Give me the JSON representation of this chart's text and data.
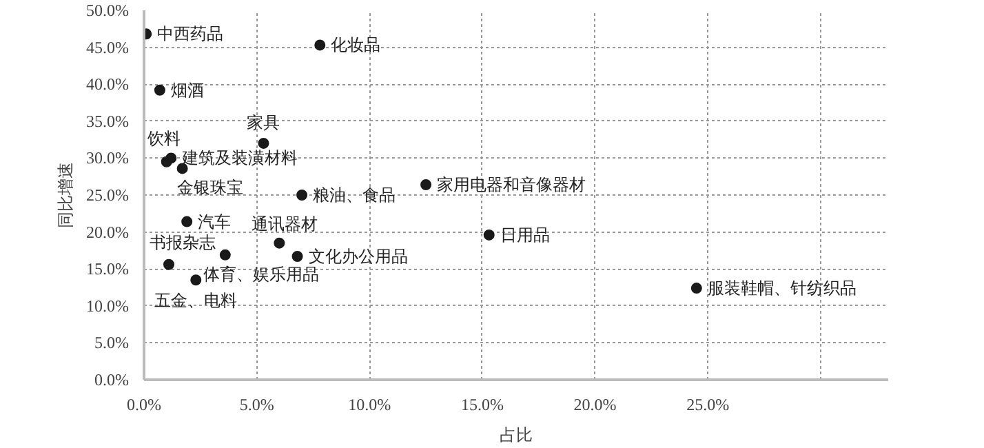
{
  "chart_data": {
    "type": "scatter",
    "xlabel": "占比",
    "ylabel": "同比增速",
    "x": [
      0.1,
      7.8,
      0.7,
      5.3,
      1.0,
      1.2,
      1.7,
      7.0,
      12.5,
      1.9,
      6.0,
      6.8,
      1.1,
      3.6,
      2.3,
      15.3,
      24.5
    ],
    "series": [
      {
        "color": "#1a1a1a",
        "values": [
          46.8,
          45.3,
          39.2,
          32.0,
          29.5,
          30.0,
          28.6,
          25.0,
          26.4,
          21.4,
          18.5,
          16.7,
          15.6,
          16.9,
          13.5,
          19.6,
          12.4
        ]
      }
    ],
    "annotations": [
      {
        "text": "中西药品",
        "x": 0.1,
        "y": 46.8
      },
      {
        "text": "化妆品",
        "x": 7.8,
        "y": 45.3
      },
      {
        "text": "烟酒",
        "x": 0.7,
        "y": 39.2
      },
      {
        "text": "家具",
        "x": 5.3,
        "y": 32.0
      },
      {
        "text": "饮料",
        "x": 1.0,
        "y": 29.5
      },
      {
        "text": "建筑及装潢材料",
        "x": 1.2,
        "y": 30.0
      },
      {
        "text": "金银珠宝",
        "x": 1.7,
        "y": 28.6
      },
      {
        "text": "粮油、食品",
        "x": 7.0,
        "y": 25.0
      },
      {
        "text": "家用电器和音像器材",
        "x": 12.5,
        "y": 26.4
      },
      {
        "text": "汽车",
        "x": 1.9,
        "y": 21.4
      },
      {
        "text": "通讯器材",
        "x": 6.0,
        "y": 18.5
      },
      {
        "text": "文化办公用品",
        "x": 6.8,
        "y": 16.7
      },
      {
        "text": "书报杂志",
        "x": 1.1,
        "y": 15.6
      },
      {
        "text": "体育、娱乐用品",
        "x": 3.6,
        "y": 16.9
      },
      {
        "text": "五金、电料",
        "x": 2.3,
        "y": 13.5
      },
      {
        "text": "日用品",
        "x": 15.3,
        "y": 19.6
      },
      {
        "text": "服装鞋帽、针纺织品",
        "x": 24.5,
        "y": 12.4
      }
    ],
    "xlim": [
      0,
      33
    ],
    "ylim": [
      0,
      50
    ],
    "xticks": [
      {
        "value": 0,
        "label": "0.0%"
      },
      {
        "value": 5,
        "label": "5.0%"
      },
      {
        "value": 10,
        "label": "10.0%"
      },
      {
        "value": 15,
        "label": "15.0%"
      },
      {
        "value": 20,
        "label": "20.0%"
      },
      {
        "value": 25,
        "label": "25.0%"
      },
      {
        "value": 30,
        "label": null
      }
    ],
    "yticks": [
      {
        "value": 0,
        "label": "0.0%"
      },
      {
        "value": 5,
        "label": "5.0%"
      },
      {
        "value": 10,
        "label": "10.0%"
      },
      {
        "value": 15,
        "label": "15.0%"
      },
      {
        "value": 20,
        "label": "20.0%"
      },
      {
        "value": 25,
        "label": "25.0%"
      },
      {
        "value": 30,
        "label": "30.0%"
      },
      {
        "value": 35,
        "label": "35.0%"
      },
      {
        "value": 40,
        "label": "40.0%"
      },
      {
        "value": 45,
        "label": "45.0%"
      },
      {
        "value": 50,
        "label": "50.0%"
      }
    ],
    "grid": true,
    "marker": "circle"
  }
}
